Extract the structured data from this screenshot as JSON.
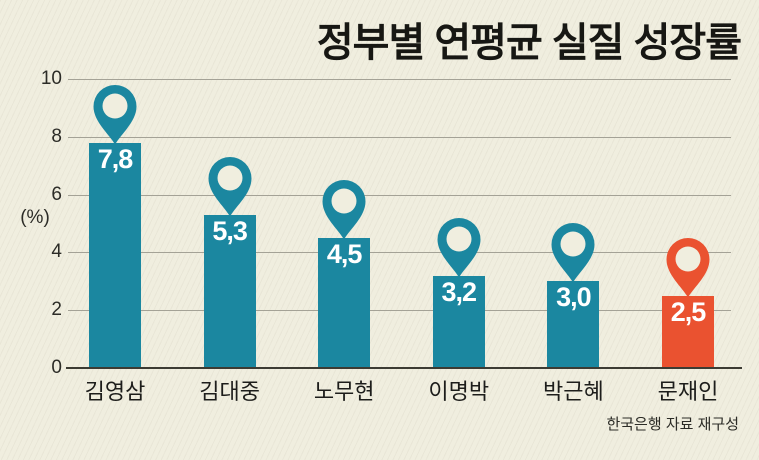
{
  "title": "정부별 연평균 실질 성장률",
  "source_note": "한국은행 자료 재구성",
  "colors": {
    "background": "#f0eedf",
    "teal": "#1b87a0",
    "orange": "#ea5230",
    "gridline": "#a4a296",
    "baseline": "#3c3b33",
    "text": "#1d1d1b",
    "value_label": "#ffffff"
  },
  "chart_data": {
    "type": "bar",
    "title": "정부별 연평균 실질 성장률",
    "categories": [
      "김영삼",
      "김대중",
      "노무현",
      "이명박",
      "박근혜",
      "문재인"
    ],
    "values": [
      7.8,
      5.3,
      4.5,
      3.2,
      3.0,
      2.5
    ],
    "value_labels": [
      "7,8",
      "5,3",
      "4,5",
      "3,2",
      "3,0",
      "2,5"
    ],
    "bar_colors": [
      "teal",
      "teal",
      "teal",
      "teal",
      "teal",
      "orange"
    ],
    "marker": "map-pin-above-each-bar",
    "yticks": [
      0,
      2,
      4,
      6,
      8,
      10
    ],
    "ylim": [
      0,
      10
    ],
    "ylabel": "(%)",
    "xlabel": "",
    "grid": true,
    "legend": "none",
    "source": "한국은행 자료 재구성"
  }
}
